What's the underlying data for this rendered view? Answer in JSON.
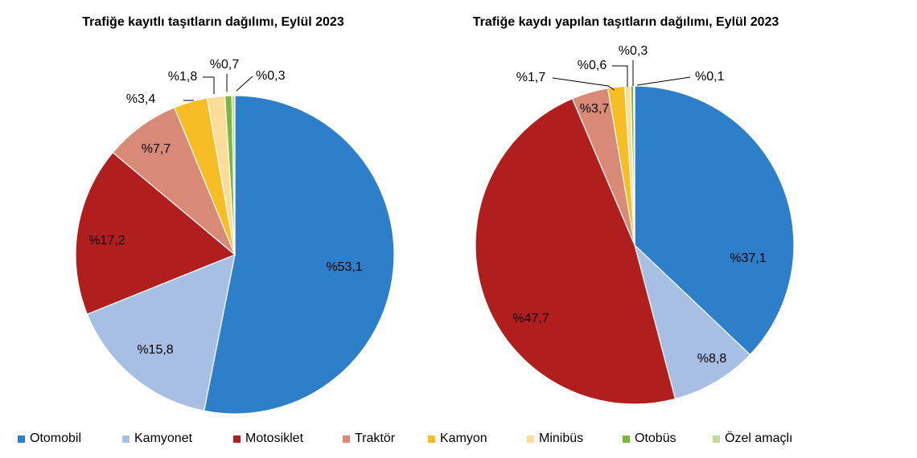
{
  "chart_data": [
    {
      "type": "pie",
      "title": "Trafiğe kayıtlı taşıtların dağılımı, Eylül 2023",
      "categories": [
        "Otomobil",
        "Kamyonet",
        "Motosiklet",
        "Traktör",
        "Kamyon",
        "Minibüs",
        "Otobüs",
        "Özel amaçlı"
      ],
      "values": [
        53.1,
        15.8,
        17.2,
        7.7,
        3.4,
        1.8,
        0.7,
        0.3
      ],
      "labels": [
        "%53,1",
        "%15,8",
        "%17,2",
        "%7,7",
        "%3,4",
        "%1,8",
        "%0,7",
        "%0,3"
      ]
    },
    {
      "type": "pie",
      "title": "Trafiğe kaydı yapılan taşıtların dağılımı, Eylül 2023",
      "categories": [
        "Otomobil",
        "Kamyonet",
        "Motosiklet",
        "Traktör",
        "Kamyon",
        "Minibüs",
        "Otobüs",
        "Özel amaçlı"
      ],
      "values": [
        37.1,
        8.8,
        47.7,
        3.7,
        1.7,
        0.6,
        0.3,
        0.1
      ],
      "labels": [
        "%37,1",
        "%8,8",
        "%47,7",
        "%3,7",
        "%1,7",
        "%0,6",
        "%0,3",
        "%0,1"
      ]
    }
  ],
  "legend": [
    {
      "label": "Otomobil",
      "color": "#2e7fc9"
    },
    {
      "label": "Kamyonet",
      "color": "#a7bfe3"
    },
    {
      "label": "Motosiklet",
      "color": "#b01e1e"
    },
    {
      "label": "Traktör",
      "color": "#d98a76"
    },
    {
      "label": "Kamyon",
      "color": "#f7bd24"
    },
    {
      "label": "Minibüs",
      "color": "#fbdc98"
    },
    {
      "label": "Otobüs",
      "color": "#79b83c"
    },
    {
      "label": "Özel amaçlı",
      "color": "#c5d89a"
    }
  ]
}
